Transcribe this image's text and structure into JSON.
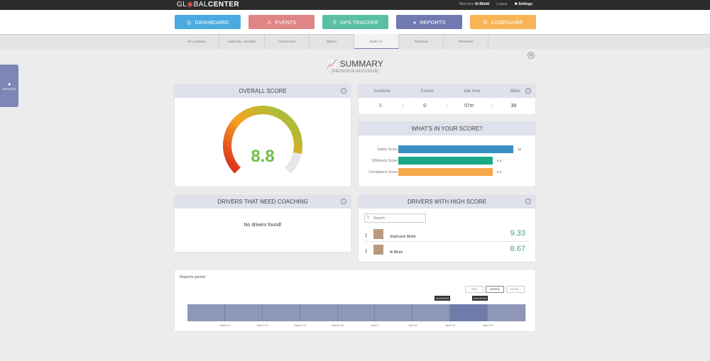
{
  "header": {
    "logo_prefix": "GL",
    "logo_mid": "BAL",
    "logo_bold": "CENTER",
    "welcome": "Welcome",
    "user": "Al Bilotti",
    "logout": "Logout",
    "settings": "Settings"
  },
  "nav": [
    {
      "label": "DASHBOARD",
      "color": "#4aabe0",
      "icon": "◎"
    },
    {
      "label": "EVENTS",
      "color": "#e08585",
      "icon": "⚠"
    },
    {
      "label": "GPS TRACKER",
      "color": "#5bbfa3",
      "icon": "⚲"
    },
    {
      "label": "REPORTS",
      "color": "#6f7ab3",
      "icon": "◕"
    },
    {
      "label": "CONFIGURE",
      "color": "#f9b455",
      "icon": "⚙"
    }
  ],
  "locations": [
    "All Locations",
    "California - Hamilton",
    "Connecticut",
    "Mexico",
    "North CA",
    "Romania",
    "Tennessee"
  ],
  "side_tab": "REPORTS",
  "summary": {
    "title": "SUMMARY",
    "range": "(04/15/2018-04/21/2018)"
  },
  "overall": {
    "title": "OVERALL SCORE",
    "score": "8.8",
    "value": 8.8,
    "max": 10
  },
  "stats": {
    "headers": [
      "Incidents",
      "Events",
      "Idle time",
      "Miles"
    ],
    "values": [
      "0",
      "0",
      "57m",
      "38"
    ]
  },
  "score_breakdown": {
    "title": "WHAT'S IN YOUR SCORE?",
    "items": [
      {
        "label": "Safety Score",
        "value": 10,
        "text": "10",
        "color": "#3b8fc4"
      },
      {
        "label": "Efficiency Score",
        "value": 8.2,
        "text": "8.2",
        "color": "#1ba98a"
      },
      {
        "label": "Compliance Score",
        "value": 8.2,
        "text": "8.2",
        "color": "#f6a84a"
      }
    ],
    "max": 10
  },
  "coaching": {
    "title": "DRIVERS THAT NEED COACHING",
    "empty": "No drivers found!"
  },
  "high": {
    "title": "DRIVERS WITH HIGH SCORE",
    "search_placeholder": "Search",
    "drivers": [
      {
        "rank": "1",
        "name": "Stephanie Bilotti",
        "score": "9.33"
      },
      {
        "rank": "2",
        "name": "Al Bilotti",
        "score": "8.67"
      }
    ]
  },
  "period": {
    "title": "Reports period",
    "buttons": [
      "daily",
      "weekly",
      "montc..."
    ],
    "ticks": [
      "March 4",
      "March 11",
      "March 18",
      "March 25",
      "April 1",
      "April 8",
      "April 15",
      "April 22"
    ],
    "start_label": "4/15/2018",
    "end_label": "4/21/2018"
  }
}
